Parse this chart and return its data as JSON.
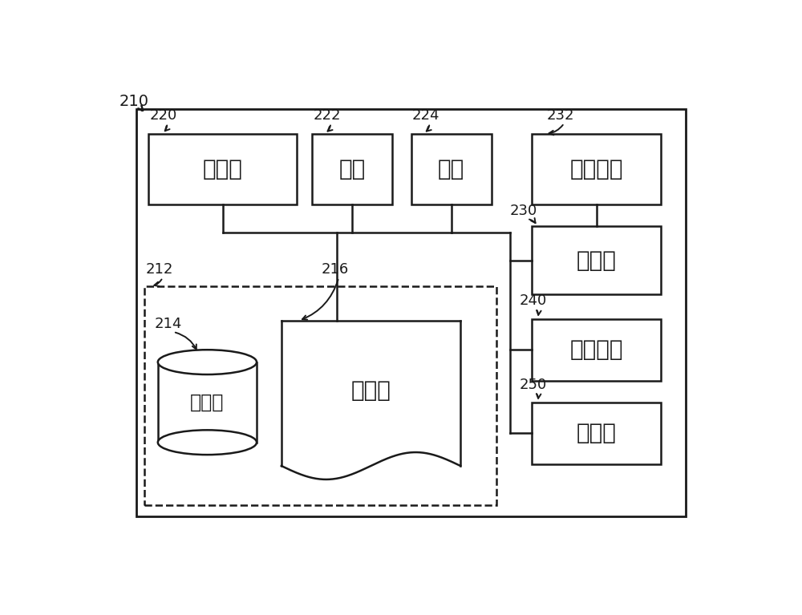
{
  "bg_color": "#ffffff",
  "line_color": "#1a1a1a",
  "label_210": "210",
  "label_212": "212",
  "label_214": "214",
  "label_216": "216",
  "label_220": "220",
  "label_222": "222",
  "label_224": "224",
  "label_230": "230",
  "label_232": "232",
  "label_240": "240",
  "label_250": "250",
  "text_220": "内窥镜",
  "text_222": "输入",
  "text_224": "透视",
  "text_230": "控制器",
  "text_232": "消融装置",
  "text_240": "数据日志",
  "text_250": "显示器",
  "text_214": "存储器",
  "text_216": "处理器",
  "font_size_label": 13,
  "font_size_text": 20,
  "font_size_text_sm": 17
}
